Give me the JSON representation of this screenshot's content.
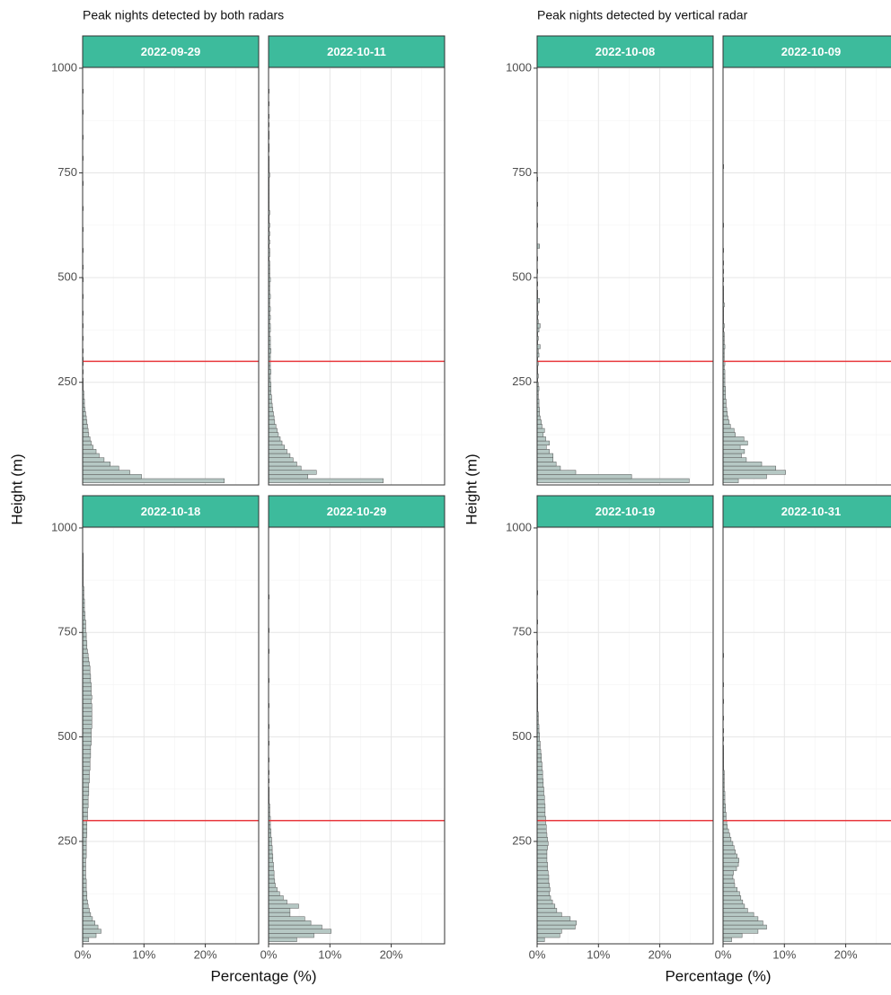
{
  "chart_data": [
    {
      "type": "histogram",
      "orientation": "horizontal",
      "title": "Peak nights detected by both radars",
      "x_label": "Percentage (%)",
      "y_label": "Height (m)",
      "bins": [
        10,
        20,
        30,
        40,
        50,
        60,
        70,
        80,
        90,
        100,
        110,
        120,
        130,
        140,
        150,
        160,
        170,
        180,
        190,
        200,
        210,
        220,
        230,
        240,
        250,
        260,
        270,
        280,
        290,
        300,
        310,
        320,
        330,
        340,
        350,
        360,
        370,
        380,
        390,
        400,
        410,
        420,
        430,
        440,
        450,
        460,
        470,
        480,
        490,
        500,
        510,
        520,
        530,
        540,
        550,
        560,
        570,
        580,
        590,
        600,
        610,
        620,
        630,
        640,
        650,
        660,
        670,
        680,
        690,
        700,
        710,
        720,
        730,
        740,
        750,
        760,
        770,
        780,
        790,
        800,
        810,
        820,
        830,
        840,
        850,
        860,
        870,
        880,
        890,
        900,
        910,
        920,
        930,
        940,
        950,
        960,
        970,
        980,
        990,
        1000
      ],
      "xlim": [
        0,
        28.7
      ],
      "xticks": [
        {
          "value": 0,
          "label": "0%"
        },
        {
          "value": 10,
          "label": "10%"
        },
        {
          "value": 20,
          "label": "20%"
        }
      ],
      "xminorticks": [
        5,
        15,
        25
      ],
      "ylim": [
        5,
        1002
      ],
      "yticks": [
        250,
        500,
        750,
        1000
      ],
      "yminorticks": [
        125,
        375,
        625,
        875
      ],
      "grid": true,
      "reference_line": 300,
      "reference_color": "#e8383d",
      "bar_color": "#b6c8c4",
      "bar_edge": "#555555",
      "strip_color": "#3dbb9c",
      "facets": [
        {
          "name": "2022-09-29",
          "values": [
            23.1,
            9.6,
            7.7,
            5.9,
            4.5,
            3.5,
            2.7,
            2.2,
            1.7,
            1.4,
            1.2,
            1.0,
            0.9,
            0.8,
            0.7,
            0.6,
            0.5,
            0.4,
            0.3,
            0.3,
            0.2,
            0.2,
            0.1,
            0.1,
            0.1,
            0,
            0.1,
            0,
            0.1,
            0.1,
            0,
            0.1,
            0,
            0,
            0.1,
            0,
            0,
            0.1,
            0,
            0,
            0.1,
            0,
            0,
            0,
            0.1,
            0,
            0,
            0,
            0.1,
            0,
            0,
            0.1,
            0,
            0,
            0,
            0.1,
            0,
            0,
            0,
            0,
            0.1,
            0,
            0,
            0,
            0,
            0.1,
            0,
            0,
            0,
            0,
            0,
            0.1,
            0,
            0,
            0,
            0,
            0,
            0.1,
            0,
            0,
            0,
            0,
            0.1,
            0,
            0,
            0,
            0,
            0,
            0.1,
            0,
            0,
            0,
            0,
            0.1,
            0,
            0,
            0,
            0,
            0
          ]
        },
        {
          "name": "2022-10-11",
          "values": [
            18.7,
            6.4,
            7.8,
            5.3,
            4.6,
            4.0,
            3.5,
            3.0,
            2.6,
            2.2,
            1.9,
            1.6,
            1.4,
            1.2,
            1.0,
            0.9,
            0.8,
            0.7,
            0.6,
            0.5,
            0.5,
            0.4,
            0.4,
            0.4,
            0.3,
            0.3,
            0.4,
            0.3,
            0.3,
            0.3,
            0.3,
            0.4,
            0.3,
            0.3,
            0.3,
            0.2,
            0.3,
            0.3,
            0.2,
            0.3,
            0.2,
            0.3,
            0.2,
            0.2,
            0.3,
            0.2,
            0.2,
            0.2,
            0.3,
            0.2,
            0.2,
            0.2,
            0.2,
            0.1,
            0.2,
            0.2,
            0.1,
            0.2,
            0.1,
            0.2,
            0.1,
            0.2,
            0.1,
            0.1,
            0.2,
            0.1,
            0.1,
            0.1,
            0.1,
            0.1,
            0.1,
            0.1,
            0.1,
            0.2,
            0.1,
            0.1,
            0.1,
            0.1,
            0,
            0.1,
            0.1,
            0,
            0.1,
            0.1,
            0,
            0.1,
            0,
            0.1,
            0,
            0,
            0.1,
            0,
            0,
            0.1,
            0,
            0,
            0,
            0,
            0
          ]
        },
        {
          "name": "2022-10-18",
          "values": [
            1.0,
            2.2,
            3.0,
            2.5,
            2.0,
            1.6,
            1.3,
            1.1,
            0.9,
            0.8,
            0.7,
            0.7,
            0.6,
            0.6,
            0.6,
            0.5,
            0.5,
            0.5,
            0.5,
            0.5,
            0.6,
            0.6,
            0.6,
            0.6,
            0.6,
            0.7,
            0.7,
            0.7,
            0.7,
            0.8,
            0.8,
            0.8,
            0.9,
            0.9,
            0.9,
            1.0,
            1.0,
            1.0,
            1.1,
            1.1,
            1.1,
            1.2,
            1.2,
            1.2,
            1.3,
            1.3,
            1.3,
            1.4,
            1.4,
            1.4,
            1.4,
            1.5,
            1.5,
            1.5,
            1.5,
            1.5,
            1.5,
            1.4,
            1.5,
            1.4,
            1.4,
            1.4,
            1.3,
            1.3,
            1.2,
            1.2,
            1.1,
            1.0,
            0.9,
            0.8,
            0.7,
            0.7,
            0.6,
            0.6,
            0.5,
            0.5,
            0.5,
            0.4,
            0.4,
            0.3,
            0.3,
            0.3,
            0.2,
            0.2,
            0.2,
            0.1,
            0.1,
            0.1,
            0.1,
            0.1,
            0.1,
            0.1,
            0.1,
            0,
            0,
            0,
            0,
            0,
            0
          ]
        },
        {
          "name": "2022-10-29",
          "values": [
            4.6,
            7.4,
            10.2,
            8.7,
            6.9,
            5.9,
            3.5,
            3.5,
            4.9,
            3.0,
            2.4,
            1.8,
            1.4,
            1.1,
            1.0,
            0.9,
            0.9,
            0.8,
            0.8,
            0.7,
            0.7,
            0.6,
            0.6,
            0.5,
            0.5,
            0.4,
            0.4,
            0.3,
            0.3,
            0.3,
            0.2,
            0.2,
            0.2,
            0.1,
            0.1,
            0.1,
            0.1,
            0,
            0.1,
            0,
            0.1,
            0,
            0,
            0.1,
            0,
            0,
            0,
            0.1,
            0,
            0,
            0,
            0.1,
            0,
            0,
            0,
            0,
            0.1,
            0,
            0,
            0,
            0,
            0,
            0.1,
            0,
            0,
            0,
            0,
            0,
            0,
            0.1,
            0,
            0,
            0,
            0,
            0.1,
            0,
            0,
            0,
            0,
            0,
            0,
            0,
            0.1,
            0,
            0,
            0,
            0,
            0,
            0,
            0,
            0,
            0,
            0,
            0,
            0,
            0,
            0,
            0,
            0
          ]
        }
      ]
    },
    {
      "type": "histogram",
      "orientation": "horizontal",
      "title": "Peak nights detected by vertical radar",
      "x_label": "Percentage (%)",
      "y_label": "Height (m)",
      "bins": [
        10,
        20,
        30,
        40,
        50,
        60,
        70,
        80,
        90,
        100,
        110,
        120,
        130,
        140,
        150,
        160,
        170,
        180,
        190,
        200,
        210,
        220,
        230,
        240,
        250,
        260,
        270,
        280,
        290,
        300,
        310,
        320,
        330,
        340,
        350,
        360,
        370,
        380,
        390,
        400,
        410,
        420,
        430,
        440,
        450,
        460,
        470,
        480,
        490,
        500,
        510,
        520,
        530,
        540,
        550,
        560,
        570,
        580,
        590,
        600,
        610,
        620,
        630,
        640,
        650,
        660,
        670,
        680,
        690,
        700,
        710,
        720,
        730,
        740,
        750,
        760,
        770,
        780,
        790,
        800,
        810,
        820,
        830,
        840,
        850,
        860,
        870,
        880,
        890,
        900,
        910,
        920,
        930,
        940,
        950,
        960,
        970,
        980,
        990,
        1000
      ],
      "xlim": [
        0,
        28.7
      ],
      "xticks": [
        {
          "value": 0,
          "label": "0%"
        },
        {
          "value": 10,
          "label": "10%"
        },
        {
          "value": 20,
          "label": "20%"
        }
      ],
      "xminorticks": [
        5,
        15,
        25
      ],
      "ylim": [
        5,
        1002
      ],
      "yticks": [
        250,
        500,
        750,
        1000
      ],
      "yminorticks": [
        125,
        375,
        625,
        875
      ],
      "grid": true,
      "reference_line": 300,
      "reference_color": "#e8383d",
      "bar_color": "#b6c8c4",
      "bar_edge": "#555555",
      "strip_color": "#3dbb9c",
      "facets": [
        {
          "name": "2022-10-08",
          "values": [
            24.8,
            15.4,
            6.3,
            3.8,
            3.1,
            2.6,
            2.6,
            2.0,
            1.5,
            2.0,
            1.4,
            1.0,
            1.2,
            0.8,
            0.7,
            0.5,
            0.4,
            0.4,
            0.3,
            0.3,
            0.2,
            0.2,
            0.3,
            0.2,
            0.1,
            0.2,
            0.1,
            0.1,
            0.2,
            0.1,
            0.3,
            0.2,
            0.5,
            0.1,
            0.2,
            0.1,
            0.3,
            0.5,
            0.2,
            0.1,
            0.2,
            0.1,
            0.1,
            0.4,
            0.1,
            0.1,
            0,
            0.1,
            0,
            0,
            0.1,
            0,
            0,
            0.1,
            0,
            0,
            0.4,
            0,
            0,
            0,
            0,
            0.1,
            0,
            0,
            0,
            0,
            0.1,
            0,
            0,
            0,
            0,
            0,
            0.1,
            0,
            0,
            0,
            0,
            0,
            0,
            0,
            0,
            0,
            0,
            0,
            0,
            0,
            0,
            0,
            0,
            0,
            0,
            0,
            0,
            0,
            0,
            0,
            0,
            0,
            0
          ]
        },
        {
          "name": "2022-10-09",
          "values": [
            2.5,
            7.1,
            10.2,
            8.6,
            6.3,
            3.8,
            3.0,
            3.5,
            2.8,
            4.0,
            3.4,
            2.0,
            1.8,
            1.2,
            1.0,
            0.8,
            0.7,
            0.6,
            0.5,
            0.5,
            0.4,
            0.4,
            0.4,
            0.3,
            0.3,
            0.3,
            0.3,
            0.2,
            0.3,
            0.2,
            0.2,
            0.2,
            0.3,
            0.2,
            0.2,
            0.2,
            0.1,
            0.2,
            0.1,
            0.1,
            0.1,
            0.1,
            0.2,
            0.1,
            0.1,
            0.1,
            0.1,
            0,
            0.1,
            0,
            0.1,
            0,
            0.1,
            0,
            0,
            0.1,
            0,
            0,
            0,
            0,
            0,
            0.1,
            0,
            0,
            0,
            0,
            0,
            0,
            0,
            0,
            0,
            0,
            0,
            0,
            0,
            0.1,
            0,
            0,
            0,
            0,
            0,
            0,
            0,
            0,
            0,
            0,
            0,
            0,
            0,
            0,
            0,
            0,
            0,
            0,
            0,
            0,
            0,
            0,
            0
          ]
        },
        {
          "name": "2022-10-19",
          "values": [
            1.2,
            3.7,
            4.0,
            6.2,
            6.4,
            5.4,
            4.0,
            3.2,
            2.9,
            2.5,
            2.2,
            2.0,
            2.1,
            2.0,
            1.9,
            1.9,
            1.8,
            1.7,
            1.7,
            1.6,
            1.6,
            1.6,
            1.7,
            1.8,
            1.7,
            1.6,
            1.5,
            1.5,
            1.4,
            1.4,
            1.3,
            1.3,
            1.3,
            1.2,
            1.2,
            1.1,
            1.1,
            1.0,
            1.0,
            0.9,
            0.9,
            0.8,
            0.8,
            0.7,
            0.7,
            0.6,
            0.5,
            0.5,
            0.4,
            0.4,
            0.3,
            0.3,
            0.2,
            0.2,
            0.2,
            0.1,
            0.1,
            0.1,
            0.1,
            0.1,
            0.1,
            0.1,
            0,
            0.1,
            0,
            0.1,
            0,
            0,
            0.1,
            0,
            0,
            0.1,
            0,
            0,
            0,
            0,
            0.1,
            0,
            0,
            0,
            0,
            0,
            0,
            0.1,
            0,
            0,
            0,
            0,
            0,
            0,
            0,
            0,
            0,
            0,
            0,
            0,
            0,
            0,
            0
          ]
        },
        {
          "name": "2022-10-31",
          "values": [
            1.4,
            3.1,
            5.7,
            7.1,
            6.5,
            5.7,
            5.0,
            4.0,
            3.5,
            3.2,
            2.9,
            2.7,
            2.3,
            1.9,
            1.8,
            1.6,
            1.7,
            2.2,
            2.5,
            2.6,
            2.3,
            2.0,
            1.8,
            1.6,
            1.3,
            1.1,
            0.9,
            0.7,
            0.6,
            0.5,
            0.5,
            0.4,
            0.4,
            0.3,
            0.3,
            0.3,
            0.2,
            0.2,
            0.2,
            0.2,
            0.2,
            0.1,
            0.1,
            0.1,
            0.1,
            0.1,
            0.1,
            0,
            0.1,
            0,
            0.1,
            0,
            0,
            0.1,
            0,
            0,
            0,
            0.1,
            0,
            0,
            0,
            0.1,
            0,
            0,
            0,
            0,
            0,
            0,
            0.1,
            0,
            0,
            0,
            0,
            0,
            0,
            0,
            0,
            0,
            0,
            0,
            0,
            0,
            0,
            0,
            0,
            0,
            0,
            0,
            0,
            0,
            0,
            0,
            0,
            0,
            0,
            0,
            0,
            0,
            0
          ]
        }
      ]
    }
  ]
}
